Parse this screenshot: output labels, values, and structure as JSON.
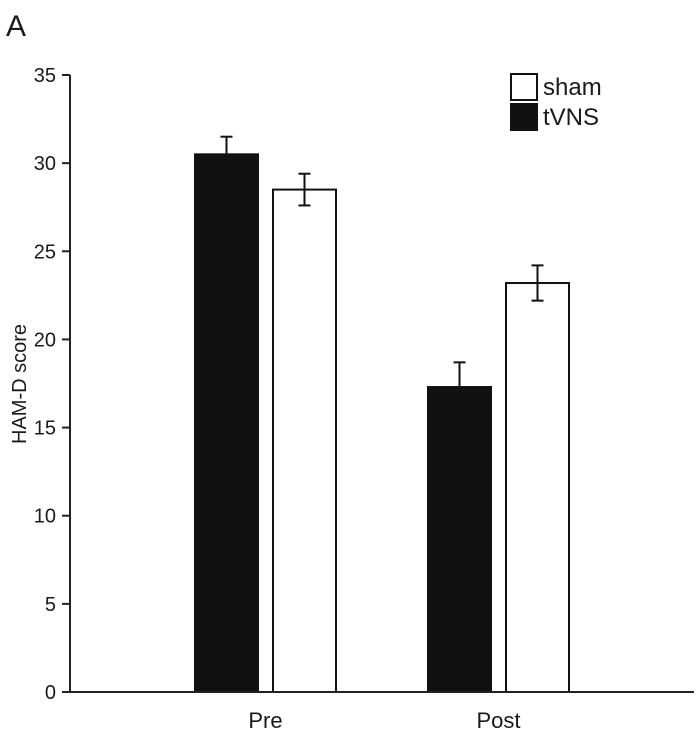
{
  "chart_data": {
    "type": "bar",
    "panel_label": "A",
    "categories": [
      "Pre",
      "Post"
    ],
    "series": [
      {
        "name": "tVNS",
        "values": [
          30.5,
          17.3
        ],
        "errors": [
          1.0,
          1.4
        ],
        "color": "#111111"
      },
      {
        "name": "sham",
        "values": [
          28.5,
          23.2
        ],
        "errors": [
          0.9,
          1.0
        ],
        "color": "#ffffff"
      }
    ],
    "xlabel": "",
    "ylabel": "HAM-D score",
    "ylim": [
      0,
      35
    ],
    "yticks": [
      "0",
      "5",
      "10",
      "15",
      "20",
      "25",
      "30",
      "35"
    ],
    "grid": false,
    "legend_position": "top-right",
    "legend_order": [
      "sham",
      "tVNS"
    ]
  }
}
